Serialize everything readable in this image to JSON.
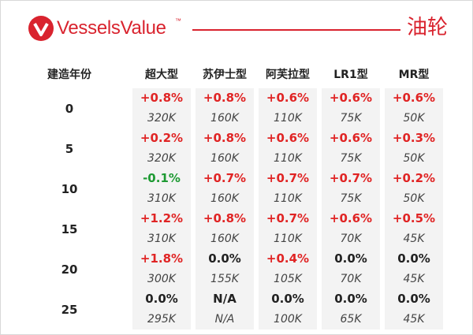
{
  "brand": {
    "name": "VesselsValue",
    "tm": "™"
  },
  "title": "油轮",
  "table": {
    "row_header": "建造年份",
    "columns": [
      "超大型",
      "苏伊士型",
      "阿芙拉型",
      "LR1型",
      "MR型"
    ],
    "rows": [
      {
        "age": "0",
        "changes": [
          "+0.8%",
          "+0.8%",
          "+0.6%",
          "+0.6%",
          "+0.6%"
        ],
        "values": [
          "320K",
          "160K",
          "110K",
          "75K",
          "50K"
        ]
      },
      {
        "age": "5",
        "changes": [
          "+0.2%",
          "+0.8%",
          "+0.6%",
          "+0.6%",
          "+0.3%"
        ],
        "values": [
          "320K",
          "160K",
          "110K",
          "75K",
          "50K"
        ]
      },
      {
        "age": "10",
        "changes": [
          "-0.1%",
          "+0.7%",
          "+0.7%",
          "+0.7%",
          "+0.2%"
        ],
        "values": [
          "310K",
          "160K",
          "110K",
          "75K",
          "50K"
        ]
      },
      {
        "age": "15",
        "changes": [
          "+1.2%",
          "+0.8%",
          "+0.7%",
          "+0.6%",
          "+0.5%"
        ],
        "values": [
          "310K",
          "160K",
          "110K",
          "70K",
          "45K"
        ]
      },
      {
        "age": "20",
        "changes": [
          "+1.8%",
          "0.0%",
          "+0.4%",
          "0.0%",
          "0.0%"
        ],
        "values": [
          "300K",
          "155K",
          "105K",
          "70K",
          "45K"
        ]
      },
      {
        "age": "25",
        "changes": [
          "0.0%",
          "N/A",
          "0.0%",
          "0.0%",
          "0.0%"
        ],
        "values": [
          "295K",
          "N/A",
          "100K",
          "65K",
          "45K"
        ]
      }
    ]
  },
  "colors": {
    "brand": "#d9232e",
    "positive": "#e02424",
    "negative": "#1e9a33",
    "neutral": "#222222",
    "cell_shade": "#f3f3f3"
  }
}
